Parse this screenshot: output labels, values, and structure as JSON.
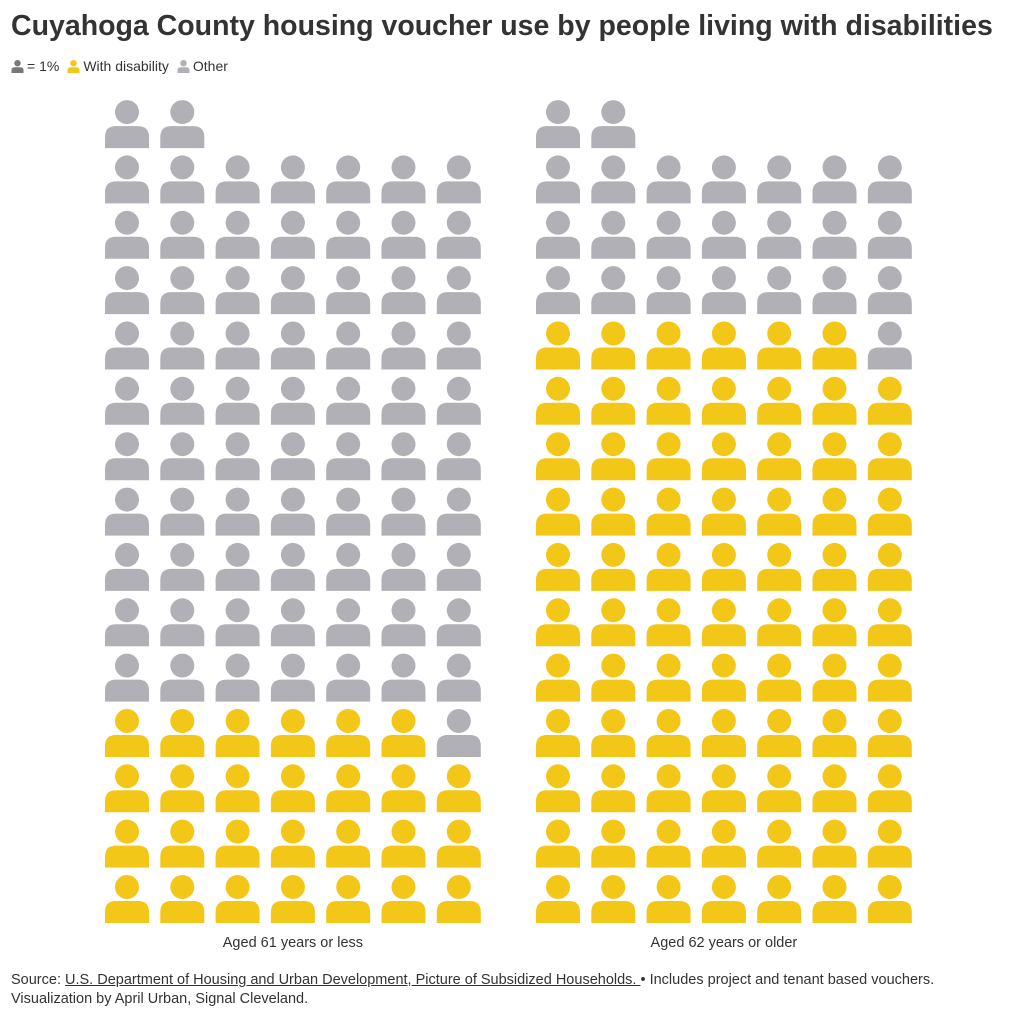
{
  "title": "Cuyahoga County housing voucher use by people living with disabilities",
  "legend": {
    "unit_label": "= 1%",
    "items": [
      {
        "label": "With disability",
        "color": "#f2c718"
      },
      {
        "label": "Other",
        "color": "#b1b0b6"
      }
    ],
    "unit_color": "#777777"
  },
  "source": {
    "prefix": "Source: ",
    "link_text": "U.S. Department of Housing and Urban Development, Picture of Subsidized Households. ",
    "suffix": " • Includes project and tenant based vouchers.",
    "credit": "Visualization by April Urban, Signal Cleveland."
  },
  "chart_data": {
    "type": "waffle",
    "unit": "1 icon = 1%",
    "columns": 7,
    "categories": [
      "Aged 61 years or less",
      "Aged 62 years or older"
    ],
    "series": [
      {
        "name": "With disability",
        "color": "#f2c718",
        "values": [
          27,
          76
        ]
      },
      {
        "name": "Other",
        "color": "#b1b0b6",
        "values": [
          73,
          24
        ]
      }
    ]
  }
}
